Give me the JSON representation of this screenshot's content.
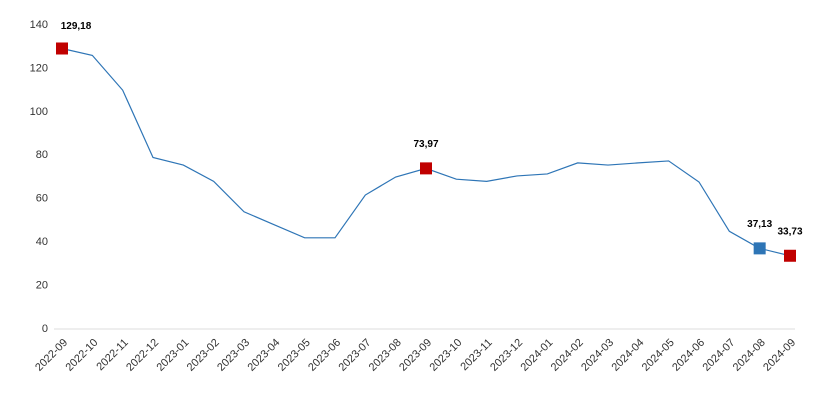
{
  "chart_data": {
    "type": "line",
    "categories": [
      "2022-09",
      "2022-10",
      "2022-11",
      "2022-12",
      "2023-01",
      "2023-02",
      "2023-03",
      "2023-04",
      "2023-05",
      "2023-06",
      "2023-07",
      "2023-08",
      "2023-09",
      "2023-10",
      "2023-11",
      "2023-12",
      "2024-01",
      "2024-02",
      "2024-03",
      "2024-04",
      "2024-05",
      "2024-06",
      "2024-07",
      "2024-08",
      "2024-09"
    ],
    "values": [
      129.18,
      126,
      110,
      79,
      75.5,
      68,
      54,
      48,
      42,
      42,
      61.7,
      70,
      73.97,
      69,
      68,
      70.5,
      71.4,
      76.5,
      75.5,
      76.5,
      77.4,
      67.7,
      45,
      37.13,
      33.73
    ],
    "value_labels": [
      "129,18",
      null,
      null,
      null,
      null,
      null,
      null,
      null,
      null,
      null,
      null,
      null,
      "73,97",
      null,
      null,
      null,
      null,
      null,
      null,
      null,
      null,
      null,
      null,
      "37,13",
      "33,73"
    ],
    "marker_colors": [
      "#c00000",
      null,
      null,
      null,
      null,
      null,
      null,
      null,
      null,
      null,
      null,
      null,
      "#c00000",
      null,
      null,
      null,
      null,
      null,
      null,
      null,
      null,
      null,
      null,
      "#2e75b6",
      "#c00000"
    ],
    "color": "#2e75b6",
    "ylim": [
      0,
      140
    ],
    "yticks": [
      0,
      20,
      40,
      60,
      80,
      100,
      120,
      140
    ],
    "grid": false
  }
}
